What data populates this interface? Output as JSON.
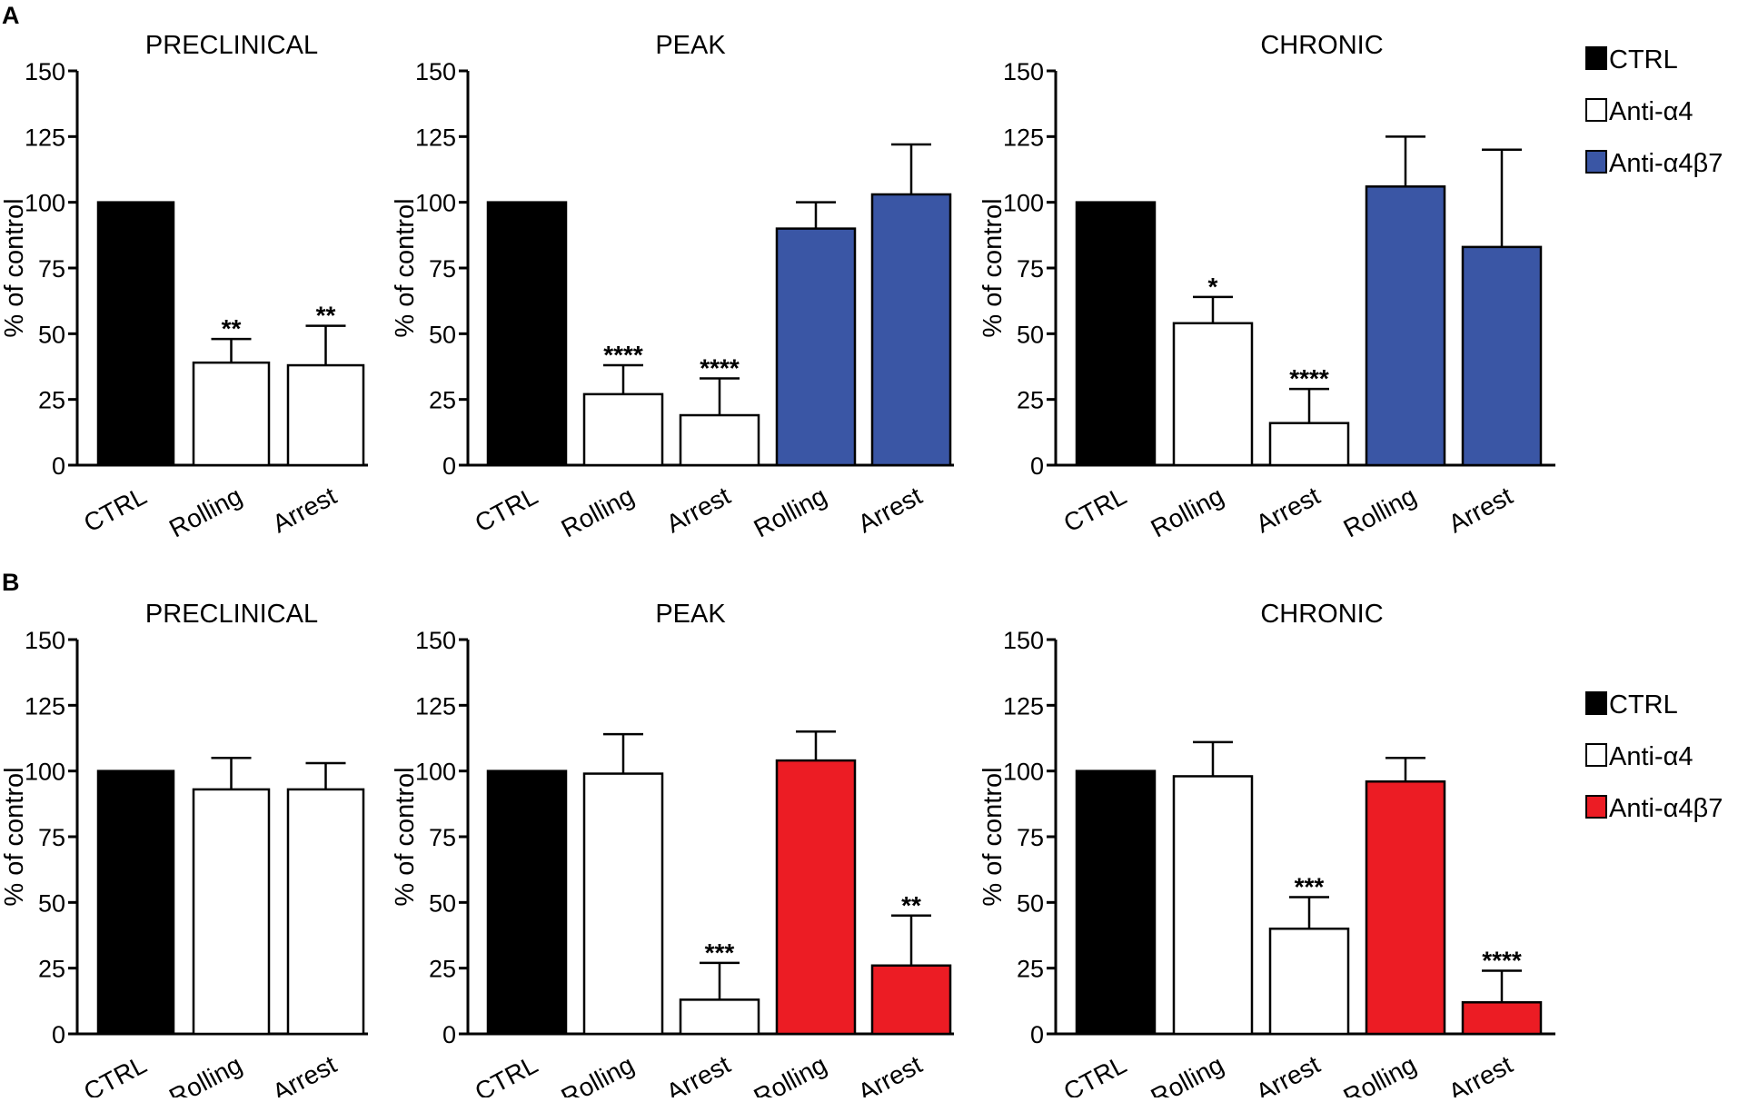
{
  "figure": {
    "panel_labels": [
      "A",
      "B"
    ]
  },
  "legends": [
    {
      "entries": [
        {
          "label": "CTRL",
          "color": "#000000"
        },
        {
          "label": "Anti-α4",
          "color": "#ffffff"
        },
        {
          "label": "Anti-α4β7",
          "color": "#3a56a5"
        }
      ]
    },
    {
      "entries": [
        {
          "label": "CTRL",
          "color": "#000000"
        },
        {
          "label": "Anti-α4",
          "color": "#ffffff"
        },
        {
          "label": "Anti-α4β7",
          "color": "#ec1c24"
        }
      ]
    }
  ],
  "colors": {
    "ctrl": "#000000",
    "anti_a4": "#ffffff",
    "anti_a4b7_A": "#3a56a5",
    "anti_a4b7_B": "#ec1c24"
  },
  "chart_data": [
    {
      "panel": "A",
      "type": "bar",
      "title": "PRECLINICAL",
      "ylabel": "% of control",
      "ylim": [
        0,
        150
      ],
      "yticks": [
        0,
        25,
        50,
        75,
        100,
        125,
        150
      ],
      "categories": [
        "CTRL",
        "Rolling",
        "Arrest"
      ],
      "groups": [
        "CTRL",
        "Anti-α4",
        "Anti-α4"
      ],
      "values": [
        100,
        39,
        38
      ],
      "errors": [
        0,
        9,
        15
      ],
      "significance": [
        "",
        "**",
        "**"
      ]
    },
    {
      "panel": "A",
      "type": "bar",
      "title": "PEAK",
      "ylabel": "% of control",
      "ylim": [
        0,
        150
      ],
      "yticks": [
        0,
        25,
        50,
        75,
        100,
        125,
        150
      ],
      "categories": [
        "CTRL",
        "Rolling",
        "Arrest",
        "Rolling",
        "Arrest"
      ],
      "groups": [
        "CTRL",
        "Anti-α4",
        "Anti-α4",
        "Anti-α4β7",
        "Anti-α4β7"
      ],
      "values": [
        100,
        27,
        19,
        90,
        103
      ],
      "errors": [
        0,
        11,
        14,
        10,
        19
      ],
      "significance": [
        "",
        "****",
        "****",
        "",
        ""
      ]
    },
    {
      "panel": "A",
      "type": "bar",
      "title": "CHRONIC",
      "ylabel": "% of control",
      "ylim": [
        0,
        150
      ],
      "yticks": [
        0,
        25,
        50,
        75,
        100,
        125,
        150
      ],
      "categories": [
        "CTRL",
        "Rolling",
        "Arrest",
        "Rolling",
        "Arrest"
      ],
      "groups": [
        "CTRL",
        "Anti-α4",
        "Anti-α4",
        "Anti-α4β7",
        "Anti-α4β7"
      ],
      "values": [
        100,
        54,
        16,
        106,
        83
      ],
      "errors": [
        0,
        10,
        13,
        19,
        37
      ],
      "significance": [
        "",
        "*",
        "****",
        "",
        ""
      ]
    },
    {
      "panel": "B",
      "type": "bar",
      "title": "PRECLINICAL",
      "ylabel": "% of control",
      "ylim": [
        0,
        150
      ],
      "yticks": [
        0,
        25,
        50,
        75,
        100,
        125,
        150
      ],
      "categories": [
        "CTRL",
        "Rolling",
        "Arrest"
      ],
      "groups": [
        "CTRL",
        "Anti-α4",
        "Anti-α4"
      ],
      "values": [
        100,
        93,
        93
      ],
      "errors": [
        0,
        12,
        10
      ],
      "significance": [
        "",
        "",
        ""
      ]
    },
    {
      "panel": "B",
      "type": "bar",
      "title": "PEAK",
      "ylabel": "% of control",
      "ylim": [
        0,
        150
      ],
      "yticks": [
        0,
        25,
        50,
        75,
        100,
        125,
        150
      ],
      "categories": [
        "CTRL",
        "Rolling",
        "Arrest",
        "Rolling",
        "Arrest"
      ],
      "groups": [
        "CTRL",
        "Anti-α4",
        "Anti-α4",
        "Anti-α4β7",
        "Anti-α4β7"
      ],
      "values": [
        100,
        99,
        13,
        104,
        26
      ],
      "errors": [
        0,
        15,
        14,
        11,
        19
      ],
      "significance": [
        "",
        "",
        "***",
        "",
        "**"
      ]
    },
    {
      "panel": "B",
      "type": "bar",
      "title": "CHRONIC",
      "ylabel": "% of control",
      "ylim": [
        0,
        150
      ],
      "yticks": [
        0,
        25,
        50,
        75,
        100,
        125,
        150
      ],
      "categories": [
        "CTRL",
        "Rolling",
        "Arrest",
        "Rolling",
        "Arrest"
      ],
      "groups": [
        "CTRL",
        "Anti-α4",
        "Anti-α4",
        "Anti-α4β7",
        "Anti-α4β7"
      ],
      "values": [
        100,
        98,
        40,
        96,
        12
      ],
      "errors": [
        0,
        13,
        12,
        9,
        12
      ],
      "significance": [
        "",
        "",
        "***",
        "",
        "****"
      ]
    }
  ]
}
